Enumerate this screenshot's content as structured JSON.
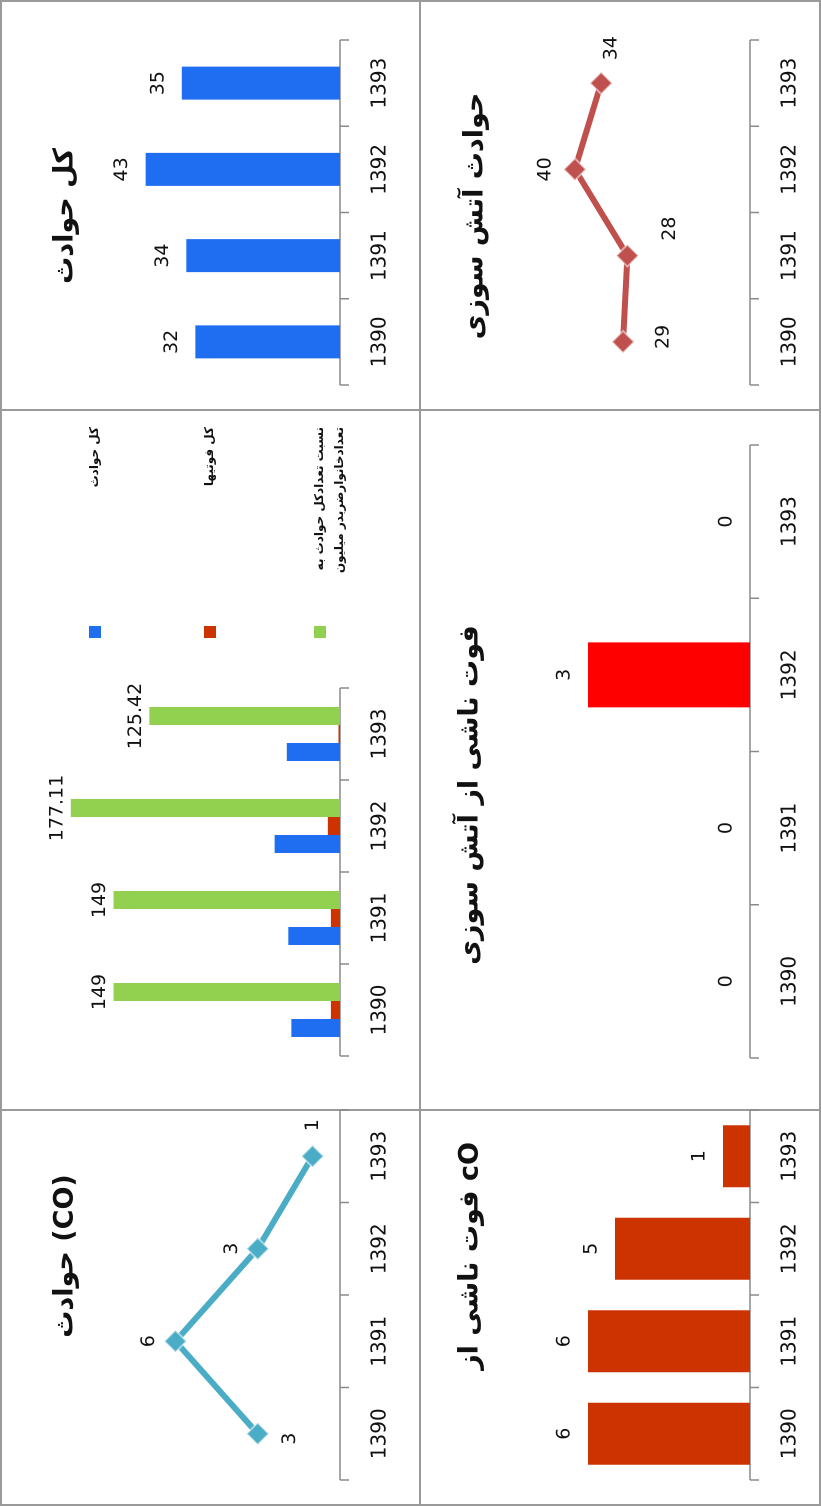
{
  "chart_data": [
    {
      "type": "bar",
      "title": "کل حوادث",
      "categories": [
        "1390",
        "1391",
        "1392",
        "1393"
      ],
      "values": [
        32,
        34,
        43,
        35
      ],
      "color": "#1f6ef2",
      "ylim": [
        0,
        50
      ],
      "data_labels": true
    },
    {
      "type": "bar",
      "categories": [
        "1390",
        "1391",
        "1392",
        "1393"
      ],
      "series": [
        {
          "name": "کل حوادث",
          "color": "#1f6ef2",
          "values": [
            32,
            34,
            43,
            35
          ]
        },
        {
          "name": "کل فوتیها",
          "color": "#cc3300",
          "values": [
            6,
            6,
            8,
            1
          ]
        },
        {
          "name": "نسبت تعدادکل حوادث به تعدادخانوارضربدر میلیون",
          "color": "#92d050",
          "values": [
            149,
            149,
            177.11,
            125.42
          ],
          "data_labels": true
        }
      ],
      "ylim": [
        0,
        200
      ],
      "legend": "right"
    },
    {
      "type": "line",
      "title": "حوادث (CO)",
      "categories": [
        "1390",
        "1391",
        "1392",
        "1393"
      ],
      "values": [
        3,
        6,
        3,
        1
      ],
      "color": "#4bacc6",
      "ylim": [
        0,
        7
      ],
      "data_labels": true
    },
    {
      "type": "line",
      "title": "حوادث آتش سوزی",
      "categories": [
        "1390",
        "1391",
        "1392",
        "1393"
      ],
      "values": [
        29,
        28,
        40,
        34
      ],
      "color": "#c0504d",
      "ylim": [
        0,
        45
      ],
      "data_labels": true
    },
    {
      "type": "bar",
      "title": "فوت ناشی از آتش سوزی",
      "categories": [
        "1390",
        "1391",
        "1392",
        "1393"
      ],
      "values": [
        0,
        0,
        3,
        0
      ],
      "color": "#ff0000",
      "ylim": [
        0,
        3.5
      ],
      "data_labels": true
    },
    {
      "type": "bar",
      "title": "فوت ناشی از cO",
      "categories": [
        "1390",
        "1391",
        "1392",
        "1393"
      ],
      "values": [
        6,
        6,
        5,
        1
      ],
      "color": "#cc3300",
      "ylim": [
        0,
        7
      ],
      "data_labels": true
    }
  ]
}
